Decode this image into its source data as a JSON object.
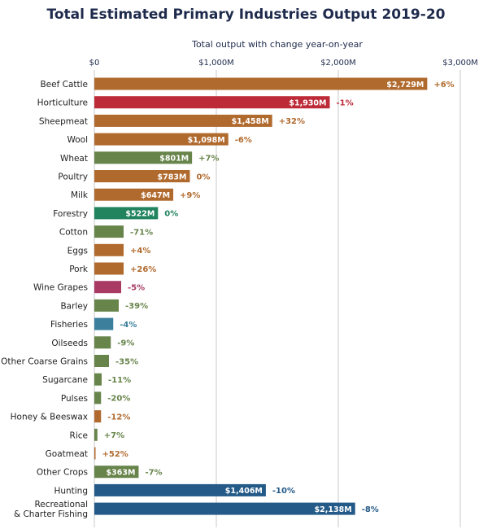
{
  "chart_data": {
    "type": "bar",
    "orientation": "horizontal",
    "title": "Total Estimated Primary Industries Output 2019-20",
    "xlabel": "Total output with change year-on-year",
    "ylabel": "",
    "xlim": [
      0,
      3000
    ],
    "x_ticks": [
      0,
      1000,
      2000,
      3000
    ],
    "x_tick_labels": [
      "$0",
      "$1,000M",
      "$2,000M",
      "$3,000M"
    ],
    "grid": "vertical",
    "unit": "$M",
    "categories": [
      "Beef Cattle",
      "Horticulture",
      "Sheepmeat",
      "Wool",
      "Wheat",
      "Poultry",
      "Milk",
      "Forestry",
      "Cotton",
      "Eggs",
      "Pork",
      "Wine Grapes",
      "Barley",
      "Fisheries",
      "Oilseeds",
      "Other Coarse Grains",
      "Sugarcane",
      "Pulses",
      "Honey & Beeswax",
      "Rice",
      "Goatmeat",
      "Other Crops",
      "Hunting",
      "Recreational & Charter Fishing"
    ],
    "category_label_lines": [
      [
        "Beef Cattle"
      ],
      [
        "Horticulture"
      ],
      [
        "Sheepmeat"
      ],
      [
        "Wool"
      ],
      [
        "Wheat"
      ],
      [
        "Poultry"
      ],
      [
        "Milk"
      ],
      [
        "Forestry"
      ],
      [
        "Cotton"
      ],
      [
        "Eggs"
      ],
      [
        "Pork"
      ],
      [
        "Wine Grapes"
      ],
      [
        "Barley"
      ],
      [
        "Fisheries"
      ],
      [
        "Oilseeds"
      ],
      [
        "Other Coarse Grains"
      ],
      [
        "Sugarcane"
      ],
      [
        "Pulses"
      ],
      [
        "Honey & Beeswax"
      ],
      [
        "Rice"
      ],
      [
        "Goatmeat"
      ],
      [
        "Other Crops"
      ],
      [
        "Hunting"
      ],
      [
        "Recreational",
        "& Charter Fishing"
      ]
    ],
    "values": [
      2729,
      1930,
      1458,
      1098,
      801,
      783,
      647,
      522,
      240,
      240,
      240,
      220,
      200,
      155,
      135,
      120,
      60,
      55,
      55,
      25,
      8,
      363,
      1406,
      2138
    ],
    "value_labels": [
      "$2,729M",
      "$1,930M",
      "$1,458M",
      "$1,098M",
      "$801M",
      "$783M",
      "$647M",
      "$522M",
      "",
      "",
      "",
      "",
      "",
      "",
      "",
      "",
      "",
      "",
      "",
      "",
      "",
      "$363M",
      "$1,406M",
      "$2,138M"
    ],
    "changes": [
      "+6%",
      "-1%",
      "+32%",
      "-6%",
      "+7%",
      "0%",
      "+9%",
      "0%",
      "-71%",
      "+4%",
      "+26%",
      "-5%",
      "-39%",
      "-4%",
      "-9%",
      "-35%",
      "-11%",
      "-20%",
      "-12%",
      "+7%",
      "+52%",
      "-7%",
      "-10%",
      "-8%"
    ],
    "bar_colors": [
      "#b06a2e",
      "#bd2b38",
      "#b06a2e",
      "#b06a2e",
      "#67844a",
      "#b06a2e",
      "#b06a2e",
      "#22845f",
      "#67844a",
      "#b06a2e",
      "#b06a2e",
      "#a83a64",
      "#67844a",
      "#3b7f9d",
      "#67844a",
      "#67844a",
      "#67844a",
      "#67844a",
      "#b06a2e",
      "#67844a",
      "#b06a2e",
      "#67844a",
      "#235a87",
      "#235a87"
    ]
  },
  "colors": {
    "title": "#1f2b4d",
    "axis_text": "#1f2b4d",
    "category_text": "#222222",
    "grid": "#c8c8c8"
  }
}
